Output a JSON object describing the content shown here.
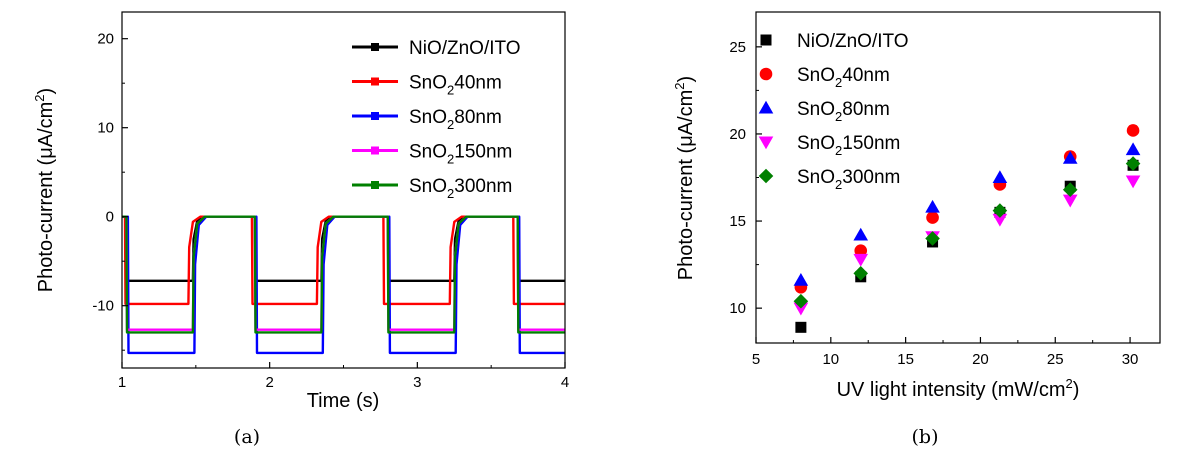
{
  "chart_data": [
    {
      "type": "line",
      "panel_label": "(a)",
      "xlabel": "Time (s)",
      "ylabel": "Photo-current (μA/cm²)",
      "ylabel_main": "Photo-current (μA/cm",
      "ylabel_sup": "2",
      "ylabel_close": ")",
      "xlim": [
        1,
        4
      ],
      "ylim": [
        -17,
        23
      ],
      "xticks": [
        "1",
        "2",
        "3",
        "4"
      ],
      "yticks": [
        "-10",
        "0",
        "10",
        "20"
      ],
      "legend_position": "top-right",
      "off_intervals": [
        [
          1.0,
          1.03
        ],
        [
          1.48,
          1.9
        ],
        [
          2.35,
          2.8
        ],
        [
          3.25,
          3.68
        ]
      ],
      "series": [
        {
          "name": "NiO/ZnO/ITO",
          "legend": {
            "main": "NiO/ZnO/ITO"
          },
          "color": "#000000",
          "on_level": -7.2,
          "off_level": 0,
          "on_edges": [
            1.03,
            1.9,
            2.8,
            3.68
          ],
          "off_edges": [
            1.48,
            2.35,
            3.25,
            4.0
          ]
        },
        {
          "name": "SnO2 40nm",
          "legend": {
            "main": "SnO",
            "sub": "2",
            "rest": "40nm"
          },
          "color": "#ff0000",
          "on_level": -9.8,
          "off_level": 0,
          "on_edges": [
            1.02,
            1.88,
            2.77,
            3.65
          ],
          "off_edges": [
            1.45,
            2.32,
            3.22,
            4.0
          ]
        },
        {
          "name": "SnO2 80nm",
          "legend": {
            "main": "SnO",
            "sub": "2",
            "rest": "80nm"
          },
          "color": "#0000ff",
          "on_level": -15.3,
          "off_level": 0,
          "on_edges": [
            1.04,
            1.91,
            2.81,
            3.69
          ],
          "off_edges": [
            1.49,
            2.36,
            3.26,
            4.0
          ]
        },
        {
          "name": "SnO2 150nm",
          "legend": {
            "main": "SnO",
            "sub": "2",
            "rest": "150nm"
          },
          "color": "#ff00ff",
          "on_level": -12.7,
          "off_level": 0,
          "on_edges": [
            1.03,
            1.9,
            2.8,
            3.68
          ],
          "off_edges": [
            1.48,
            2.35,
            3.25,
            4.0
          ]
        },
        {
          "name": "SnO2 300nm",
          "legend": {
            "main": "SnO",
            "sub": "2",
            "rest": "300nm"
          },
          "color": "#008000",
          "on_level": -13.0,
          "off_level": 0,
          "on_edges": [
            1.03,
            1.9,
            2.8,
            3.68
          ],
          "off_edges": [
            1.48,
            2.35,
            3.25,
            4.0
          ]
        }
      ]
    },
    {
      "type": "scatter",
      "panel_label": "(b)",
      "xlabel": "UV light intensity (mW/cm²)",
      "xlabel_main": "UV light intensity (mW/cm",
      "xlabel_sup": "2",
      "xlabel_close": ")",
      "ylabel": "Photo-current (μA/cm²)",
      "ylabel_main": "Photo-current (μA/cm",
      "ylabel_sup": "2",
      "ylabel_close": ")",
      "xlim": [
        5,
        32
      ],
      "ylim": [
        8,
        27
      ],
      "xticks": [
        "5",
        "10",
        "15",
        "20",
        "25",
        "30"
      ],
      "yticks": [
        "10",
        "15",
        "20",
        "25"
      ],
      "legend_position": "top-left",
      "x": [
        8.0,
        12.0,
        16.8,
        21.3,
        26.0,
        30.2
      ],
      "series": [
        {
          "name": "NiO/ZnO/ITO",
          "legend": {
            "main": "NiO/ZnO/ITO"
          },
          "color": "#000000",
          "marker": "square",
          "values": [
            8.9,
            11.8,
            13.8,
            15.5,
            17.0,
            18.2
          ]
        },
        {
          "name": "SnO2 40nm",
          "legend": {
            "main": "SnO",
            "sub": "2",
            "rest": "40nm"
          },
          "color": "#ff0000",
          "marker": "circle",
          "values": [
            11.2,
            13.3,
            15.2,
            17.1,
            18.7,
            20.2
          ]
        },
        {
          "name": "SnO2 80nm",
          "legend": {
            "main": "SnO",
            "sub": "2",
            "rest": "80nm"
          },
          "color": "#0000ff",
          "marker": "triangle-up",
          "values": [
            11.6,
            14.2,
            15.8,
            17.5,
            18.6,
            19.1
          ]
        },
        {
          "name": "SnO2 150nm",
          "legend": {
            "main": "SnO",
            "sub": "2",
            "rest": "150nm"
          },
          "color": "#ff00ff",
          "marker": "triangle-down",
          "values": [
            10.0,
            12.8,
            14.1,
            15.1,
            16.2,
            17.3
          ]
        },
        {
          "name": "SnO2 300nm",
          "legend": {
            "main": "SnO",
            "sub": "2",
            "rest": "300nm"
          },
          "color": "#008000",
          "marker": "diamond",
          "values": [
            10.4,
            12.0,
            14.0,
            15.6,
            16.8,
            18.3
          ]
        }
      ]
    }
  ]
}
